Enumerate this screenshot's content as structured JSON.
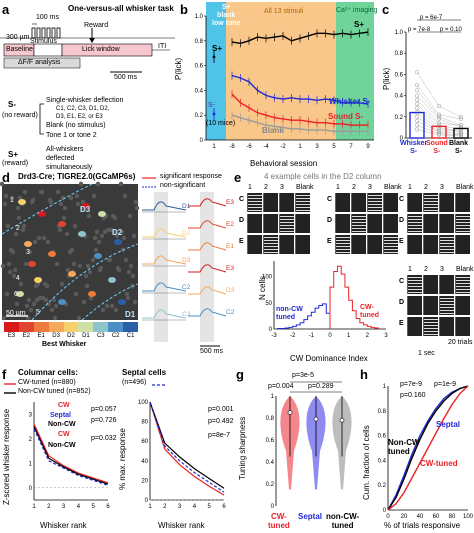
{
  "panel_labels": [
    "a",
    "b",
    "c",
    "d",
    "e",
    "f",
    "g",
    "h"
  ],
  "panel_a": {
    "title": "One-versus-all whisker task",
    "scale_100ms": "100 ms",
    "scale_300um": "300 µm",
    "stimulus": "Stimulus",
    "reward": "Reward",
    "baseline": "Baseline",
    "lick_window": "Lick window",
    "iti": "ITI",
    "analysis": "ΔF/F analysis",
    "scale_500ms": "500 ms",
    "s_minus": "S-",
    "no_reward": "(no reward)",
    "single_deflection": "Single-whisker deflection",
    "whisker_list_1": "C1, C2, C3, D1, D2,",
    "whisker_list_2": "D3, E1, E2, or E3",
    "blank": "Blank (no stimulus)",
    "tone": "Tone 1 or tone 2",
    "s_plus": "S+",
    "reward_paren": "(reward)",
    "all_whiskers_1": "All-whiskers",
    "all_whiskers_2": "deflected",
    "all_whiskers_3": "simultaneously"
  },
  "panel_b": {
    "band_1_1": "S+",
    "band_1_2": "blank",
    "band_1_3": "low tone",
    "band_2": "All 13 stimuli",
    "band_3_1": "Ca²⁺ imaging",
    "band_3_2": "S+",
    "ylabel": "P(lick)",
    "xlabel": "Behavioral session",
    "n_mice": "(10 mice)",
    "s_plus_label": "S+",
    "s_minus_label": "S-",
    "whisker_label": "Whisker S-",
    "sound_label": "Sound S-",
    "blank_label": "Blank",
    "y_ticks": [
      "0",
      "0.2",
      "0.4",
      "0.6",
      "0.8",
      "1.0"
    ],
    "x_ticks": [
      "1",
      "-8",
      "-6",
      "-4",
      "-2",
      "1",
      "3",
      "5",
      "7",
      "9"
    ]
  },
  "panel_c": {
    "stat_top": "p = 6e-7",
    "stat_left": "p = 7e-8",
    "stat_right": "p = 0.10",
    "ylabel": "P(lick)",
    "y_ticks": [
      "0",
      "0.2",
      "0.4",
      "0.6",
      "0.8",
      "1.0"
    ],
    "cat_whisker_1": "Whisker",
    "cat_whisker_2": "S-",
    "cat_sound_1": "Sound",
    "cat_sound_2": "S-",
    "cat_blank_1": "Blank",
    "cat_blank_2": "S-"
  },
  "panel_d": {
    "title": "Drd3-Cre; TIGRE2.0(GCaMP6s)",
    "scale": "50 µm",
    "legend_title": "Best Whisker",
    "whiskers": [
      "E3",
      "E2",
      "E1",
      "D3",
      "D2",
      "D1",
      "C3",
      "C2",
      "C1"
    ],
    "whisker_colors": [
      "#d7191c",
      "#e0462f",
      "#ee7a3b",
      "#f4a95a",
      "#f6d06a",
      "#cfe0a6",
      "#8ec4cc",
      "#4b8fc4",
      "#2b5ea9"
    ],
    "region_labels": [
      "D3",
      "D2",
      "D1"
    ],
    "cell_numbers": [
      "1",
      "2",
      "3",
      "4",
      "5",
      "6"
    ],
    "legend_sig": "significant response",
    "legend_nonsig": "non-significant",
    "trace_labels_left": [
      "D1",
      "D2",
      "D3",
      "C2",
      "C3"
    ],
    "trace_labels_right": [
      "E3",
      "E2",
      "E1",
      "E3",
      "D3",
      "C2"
    ],
    "scale_time": "500 ms"
  },
  "panel_e": {
    "title": "4 example cells in the D2 column",
    "cols": [
      "1",
      "2",
      "3",
      "Blank"
    ],
    "rows": [
      "C",
      "D",
      "E"
    ],
    "ylabel": "N cells",
    "xlabel": "CW Dominance Index",
    "non_cw_1": "non-CW",
    "non_cw_2": "tuned",
    "cw_1": "CW-",
    "cw_2": "tuned",
    "x_ticks": [
      "-3",
      "-2",
      "-1",
      "0",
      "1",
      "2",
      "3"
    ],
    "y_ticks": [
      "0",
      "50",
      "100"
    ],
    "scale_trials": "20 trials",
    "scale_sec": "1 sec"
  },
  "panel_f": {
    "title_1": "Columnar cells:",
    "title_2": "Septal cells",
    "cw_tuned": "CW-tuned (n=880)",
    "non_cw": "Non-CW tuned (n=852)",
    "septal_n": "(n=496)",
    "cw": "CW",
    "septal": "Septal",
    "non_cw_short": "Non-CW",
    "p_left": [
      "p=0.057",
      "p=0.726",
      "p=0.032"
    ],
    "p_right": [
      "p=0.001",
      "p=0.492",
      "p=8e-7"
    ],
    "ylabel_left": "Z-scored whisker response",
    "ylabel_right": "% max. response",
    "xlabel": "Whisker rank",
    "x_ticks": [
      "1",
      "2",
      "3",
      "4",
      "5",
      "6"
    ],
    "y_ticks_left": [
      "0",
      "1",
      "2",
      "3"
    ],
    "y_ticks_right": [
      "0",
      "20",
      "40",
      "60",
      "80",
      "100"
    ]
  },
  "panel_g": {
    "p_top": "p=3e-5",
    "p_left": "p=0.004",
    "p_right": "p=0.289",
    "ylabel": "Tuning sharpness",
    "y_ticks": [
      "0",
      "0.2",
      "0.4",
      "0.6",
      "0.8",
      "1"
    ],
    "cats": [
      [
        "CW-",
        "tuned"
      ],
      [
        "Septal",
        ""
      ],
      [
        "non-CW-",
        "tuned"
      ]
    ]
  },
  "panel_h": {
    "p1": "p=7e-9",
    "p2": "p=1e-9",
    "p3": "p=0.160",
    "septal": "Septal",
    "non_cw_1": "Non-CW",
    "non_cw_2": "tuned",
    "cw_tuned": "CW-tuned",
    "ylabel": "Cum. fraction of cells",
    "xlabel": "% of trials responsive",
    "x_ticks": [
      "0",
      "20",
      "40",
      "60",
      "80",
      "100"
    ],
    "y_ticks": [
      "0",
      "0.2",
      "0.4",
      "0.6",
      "0.8",
      "1"
    ]
  },
  "chart_data": [
    {
      "type": "line",
      "ylabel": "P(lick)",
      "xlabel": "Behavioral session",
      "ylim": [
        0,
        1.0
      ],
      "x": [
        "1",
        "-8",
        "-7",
        "-6",
        "-5",
        "-4",
        "-3",
        "-2",
        "-1",
        "1",
        "2",
        "3",
        "4",
        "5",
        "6",
        "7",
        "8",
        "9"
      ],
      "series": [
        {
          "name": "S+",
          "values": [
            0.67,
            0.79,
            0.78,
            0.8,
            0.83,
            0.82,
            0.83,
            0.84,
            0.8,
            0.82,
            0.84,
            0.86,
            0.86,
            0.85,
            0.86,
            0.85,
            0.86,
            0.87
          ]
        },
        {
          "name": "Whisker S-",
          "values": [
            0.21,
            0.52,
            0.5,
            0.47,
            0.4,
            0.36,
            0.34,
            0.33,
            0.34,
            0.33,
            0.33,
            0.32,
            0.33,
            0.32,
            0.3,
            0.3,
            0.3,
            0.29
          ]
        },
        {
          "name": "Sound S-",
          "values": [
            null,
            0.37,
            0.3,
            0.26,
            0.22,
            0.2,
            0.18,
            0.17,
            0.16,
            0.16,
            0.15,
            0.14,
            0.14,
            0.13,
            0.13,
            0.12,
            0.12,
            0.12
          ]
        },
        {
          "name": "Blank",
          "values": [
            null,
            0.2,
            0.18,
            0.16,
            0.14,
            0.12,
            0.11,
            0.1,
            0.09,
            0.09,
            0.08,
            0.08,
            0.08,
            0.07,
            0.07,
            0.07,
            0.07,
            0.07
          ]
        }
      ]
    },
    {
      "type": "bar",
      "ylabel": "P(lick)",
      "ylim": [
        0,
        1.0
      ],
      "categories": [
        "Whisker S-",
        "Sound S-",
        "Blank S-"
      ],
      "values": [
        0.24,
        0.11,
        0.09
      ]
    },
    {
      "type": "bar",
      "xlabel": "CW Dominance Index",
      "ylabel": "N cells",
      "ylim": [
        0,
        130
      ],
      "categories": [
        "-2.8",
        "-2.6",
        "-2.4",
        "-2.2",
        "-2.0",
        "-1.8",
        "-1.6",
        "-1.4",
        "-1.2",
        "-1.0",
        "-0.8",
        "-0.6",
        "-0.4",
        "-0.2",
        "0",
        "0.2",
        "0.4",
        "0.6",
        "0.8",
        "1.0",
        "1.2",
        "1.4",
        "1.6",
        "1.8",
        "2.0",
        "2.2",
        "2.4"
      ],
      "values": [
        1,
        1,
        2,
        3,
        5,
        8,
        12,
        18,
        25,
        32,
        40,
        45,
        48,
        30,
        80,
        110,
        120,
        105,
        80,
        55,
        35,
        20,
        12,
        8,
        5,
        3,
        2
      ]
    },
    {
      "type": "line",
      "xlabel": "Whisker rank",
      "ylabel": "Z-scored whisker response",
      "ylim": [
        -0.5,
        3.5
      ],
      "x": [
        1,
        2,
        3,
        4,
        5,
        6
      ],
      "series": [
        {
          "name": "CW-tuned (n=880)",
          "values": [
            2.6,
            1.3,
            0.9,
            0.6,
            0.4,
            0.2
          ]
        },
        {
          "name": "Non-CW tuned (n=852)",
          "values": [
            2.5,
            1.2,
            0.85,
            0.55,
            0.35,
            0.15
          ]
        },
        {
          "name": "(n=496)",
          "values": [
            2.4,
            1.1,
            0.8,
            0.5,
            0.3,
            0.1
          ]
        }
      ]
    },
    {
      "type": "line",
      "xlabel": "Whisker rank",
      "ylabel": "% max. response",
      "ylim": [
        0,
        100
      ],
      "x": [
        1,
        2,
        3,
        4,
        5,
        6
      ],
      "series": [
        {
          "name": "CW-tuned (n=880)",
          "values": [
            100,
            52,
            36,
            24,
            14,
            5
          ]
        },
        {
          "name": "Non-CW tuned (n=852)",
          "values": [
            100,
            58,
            44,
            32,
            22,
            12
          ]
        },
        {
          "name": "(n=496)",
          "values": [
            100,
            55,
            40,
            28,
            18,
            8
          ]
        }
      ]
    },
    {
      "type": "bar",
      "ylabel": "Tuning sharpness",
      "ylim": [
        0,
        1
      ],
      "categories": [
        "CW-tuned",
        "Septal",
        "non-CW-tuned"
      ],
      "values": [
        0.85,
        0.79,
        0.78
      ]
    },
    {
      "type": "line",
      "xlabel": "% of trials responsive",
      "ylabel": "Cum. fraction of cells",
      "ylim": [
        0,
        1
      ],
      "x": [
        0,
        10,
        20,
        30,
        40,
        50,
        60,
        70,
        80,
        90,
        100
      ],
      "series": [
        {
          "name": "Septal",
          "values": [
            0,
            0.12,
            0.28,
            0.45,
            0.6,
            0.72,
            0.82,
            0.9,
            0.95,
            0.98,
            1
          ]
        },
        {
          "name": "Non-CW tuned",
          "values": [
            0,
            0.1,
            0.25,
            0.42,
            0.57,
            0.7,
            0.8,
            0.88,
            0.94,
            0.98,
            1
          ]
        },
        {
          "name": "CW-tuned",
          "values": [
            0,
            0.05,
            0.14,
            0.26,
            0.38,
            0.5,
            0.62,
            0.74,
            0.85,
            0.94,
            1
          ]
        }
      ]
    }
  ]
}
